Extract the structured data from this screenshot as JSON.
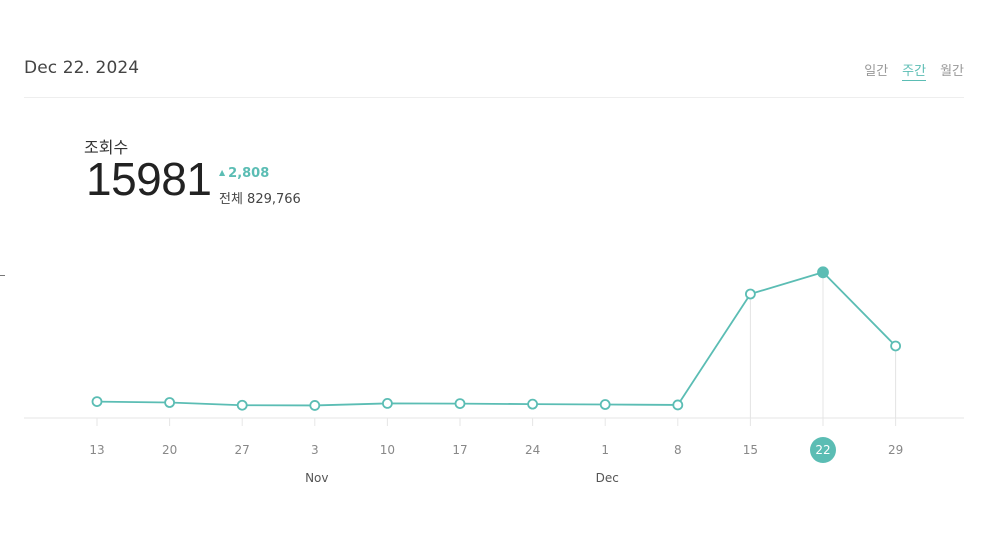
{
  "header": {
    "date": "Dec 22. 2024",
    "tabs": [
      {
        "label": "일간",
        "active": false
      },
      {
        "label": "주간",
        "active": true
      },
      {
        "label": "월간",
        "active": false
      }
    ]
  },
  "metric": {
    "label": "조회수",
    "value": "15981",
    "change": "2,808",
    "total_label": "전체 829,766"
  },
  "colors": {
    "accent": "#5bbdb4",
    "gridline": "#e4e4e4",
    "tick_text": "#888888"
  },
  "chart_data": {
    "type": "line",
    "x": [
      "13",
      "20",
      "27",
      "3",
      "10",
      "17",
      "24",
      "1",
      "8",
      "15",
      "22",
      "29"
    ],
    "month_labels": [
      {
        "label": "Nov",
        "index": 3
      },
      {
        "label": "Dec",
        "index": 7
      }
    ],
    "values": [
      1800,
      1700,
      1400,
      1380,
      1600,
      1580,
      1520,
      1480,
      1430,
      13600,
      15981,
      7900
    ],
    "selected_index": 10,
    "ylim": [
      0,
      17000
    ],
    "vertical_guides_from_index": 9,
    "grid": false
  }
}
